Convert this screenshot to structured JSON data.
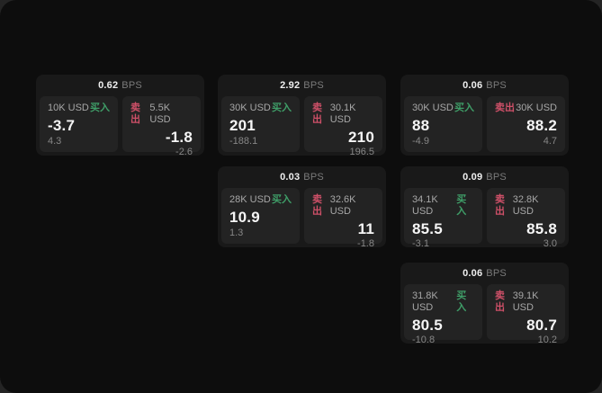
{
  "labels": {
    "bps_unit": "BPS",
    "buy": "买入",
    "sell": "卖出"
  },
  "colors": {
    "buy_accent": "#3f9e68",
    "sell_accent": "#ce5068",
    "canvas_bg": "#0d0d0d",
    "card_bg": "#191919",
    "panel_bg": "#232323"
  },
  "cards": [
    {
      "bps": "0.62",
      "buy": {
        "size": "10K USD",
        "price": "-3.7",
        "sub": "4.3"
      },
      "sell": {
        "size": "5.5K USD",
        "price": "-1.8",
        "sub": "-2.6"
      }
    },
    {
      "bps": "2.92",
      "buy": {
        "size": "30K USD",
        "price": "201",
        "sub": "-188.1"
      },
      "sell": {
        "size": "30.1K USD",
        "price": "210",
        "sub": "196.5"
      }
    },
    {
      "bps": "0.06",
      "buy": {
        "size": "30K USD",
        "price": "88",
        "sub": "-4.9"
      },
      "sell": {
        "size": "30K USD",
        "price": "88.2",
        "sub": "4.7"
      }
    },
    {
      "bps": "0.03",
      "buy": {
        "size": "28K USD",
        "price": "10.9",
        "sub": "1.3"
      },
      "sell": {
        "size": "32.6K USD",
        "price": "11",
        "sub": "-1.8"
      }
    },
    {
      "bps": "0.09",
      "buy": {
        "size": "34.1K USD",
        "price": "85.5",
        "sub": "-3.1"
      },
      "sell": {
        "size": "32.8K USD",
        "price": "85.8",
        "sub": "3.0"
      }
    },
    {
      "bps": "0.06",
      "buy": {
        "size": "31.8K USD",
        "price": "80.5",
        "sub": "-10.8"
      },
      "sell": {
        "size": "39.1K USD",
        "price": "80.7",
        "sub": "10.2"
      }
    }
  ]
}
